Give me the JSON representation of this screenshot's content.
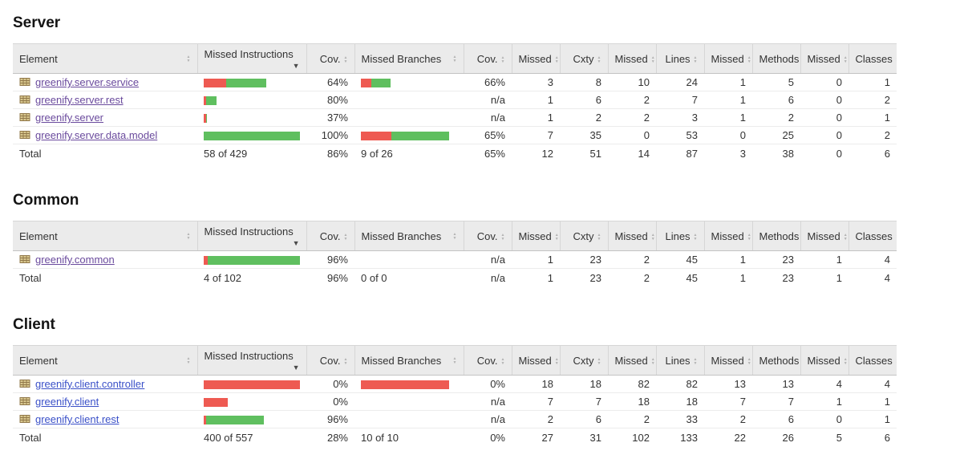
{
  "colors": {
    "missed_bar": "#ee5a52",
    "covered_bar": "#5fbf5f",
    "link_visited": "#6a4a9d",
    "link_new": "#3a50c8",
    "header_background": "#ebebeb"
  },
  "columns": [
    {
      "label": "Element",
      "sort": "both"
    },
    {
      "label": "Missed Instructions",
      "sort": "desc"
    },
    {
      "label": "Cov.",
      "sort": "both"
    },
    {
      "label": "Missed Branches",
      "sort": "both"
    },
    {
      "label": "Cov.",
      "sort": "both"
    },
    {
      "label": "Missed",
      "sort": "both"
    },
    {
      "label": "Cxty",
      "sort": "both"
    },
    {
      "label": "Missed",
      "sort": "both"
    },
    {
      "label": "Lines",
      "sort": "both"
    },
    {
      "label": "Missed",
      "sort": "both"
    },
    {
      "label": "Methods",
      "sort": "both"
    },
    {
      "label": "Missed",
      "sort": "both"
    },
    {
      "label": "Classes",
      "sort": "both"
    }
  ],
  "sections": [
    {
      "title": "Server",
      "rows": [
        {
          "name": "greenify.server.service",
          "instr_bar": {
            "missed": 28,
            "covered": 50
          },
          "instr_cov": "64%",
          "branch_bar": {
            "missed": 13,
            "covered": 24
          },
          "branch_cov": "66%",
          "counters": [
            "3",
            "8",
            "10",
            "24",
            "1",
            "5",
            "0",
            "1"
          ]
        },
        {
          "name": "greenify.server.rest",
          "instr_bar": {
            "missed": 3,
            "covered": 13
          },
          "instr_cov": "80%",
          "branch_bar": null,
          "branch_cov": "n/a",
          "counters": [
            "1",
            "6",
            "2",
            "7",
            "1",
            "6",
            "0",
            "2"
          ]
        },
        {
          "name": "greenify.server",
          "instr_bar": {
            "missed": 3,
            "covered": 1
          },
          "instr_cov": "37%",
          "branch_bar": null,
          "branch_cov": "n/a",
          "counters": [
            "1",
            "2",
            "2",
            "3",
            "1",
            "2",
            "0",
            "1"
          ]
        },
        {
          "name": "greenify.server.data.model",
          "instr_bar": {
            "missed": 0,
            "covered": 120
          },
          "instr_cov": "100%",
          "branch_bar": {
            "missed": 38,
            "covered": 72
          },
          "branch_cov": "65%",
          "counters": [
            "7",
            "35",
            "0",
            "53",
            "0",
            "25",
            "0",
            "2"
          ]
        }
      ],
      "total": {
        "label": "Total",
        "instr": "58 of 429",
        "instr_cov": "86%",
        "branch": "9 of 26",
        "branch_cov": "65%",
        "counters": [
          "12",
          "51",
          "14",
          "87",
          "3",
          "38",
          "0",
          "6"
        ]
      }
    },
    {
      "title": "Common",
      "rows": [
        {
          "name": "greenify.common",
          "instr_bar": {
            "missed": 5,
            "covered": 115
          },
          "instr_cov": "96%",
          "branch_bar": null,
          "branch_cov": "n/a",
          "counters": [
            "1",
            "23",
            "2",
            "45",
            "1",
            "23",
            "1",
            "4"
          ]
        }
      ],
      "total": {
        "label": "Total",
        "instr": "4 of 102",
        "instr_cov": "96%",
        "branch": "0 of 0",
        "branch_cov": "n/a",
        "counters": [
          "1",
          "23",
          "2",
          "45",
          "1",
          "23",
          "1",
          "4"
        ]
      }
    },
    {
      "title": "Client",
      "rows": [
        {
          "name": "greenify.client.controller",
          "instr_bar": {
            "missed": 120,
            "covered": 0
          },
          "instr_cov": "0%",
          "branch_bar": {
            "missed": 110,
            "covered": 0
          },
          "branch_cov": "0%",
          "counters": [
            "18",
            "18",
            "82",
            "82",
            "13",
            "13",
            "4",
            "4"
          ]
        },
        {
          "name": "greenify.client",
          "instr_bar": {
            "missed": 30,
            "covered": 0
          },
          "instr_cov": "0%",
          "branch_bar": null,
          "branch_cov": "n/a",
          "counters": [
            "7",
            "7",
            "18",
            "18",
            "7",
            "7",
            "1",
            "1"
          ]
        },
        {
          "name": "greenify.client.rest",
          "instr_bar": {
            "missed": 3,
            "covered": 72
          },
          "instr_cov": "96%",
          "branch_bar": null,
          "branch_cov": "n/a",
          "counters": [
            "2",
            "6",
            "2",
            "33",
            "2",
            "6",
            "0",
            "1"
          ]
        }
      ],
      "total": {
        "label": "Total",
        "instr": "400 of 557",
        "instr_cov": "28%",
        "branch": "10 of 10",
        "branch_cov": "0%",
        "counters": [
          "27",
          "31",
          "102",
          "133",
          "22",
          "26",
          "5",
          "6"
        ]
      }
    }
  ]
}
